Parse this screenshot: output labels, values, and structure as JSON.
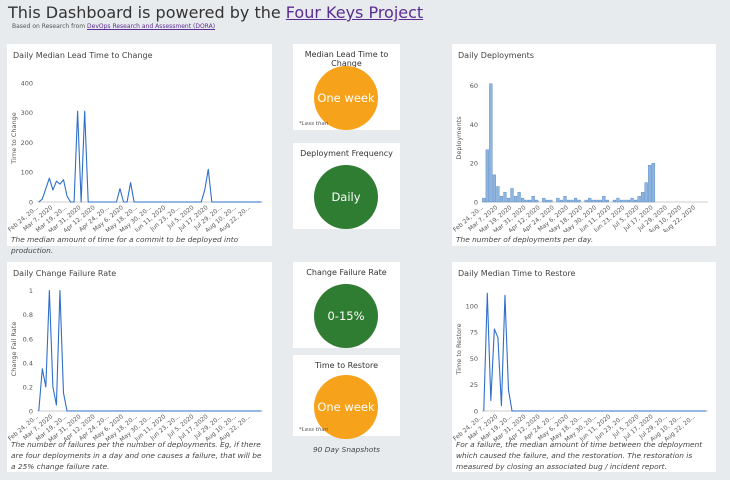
{
  "header": {
    "title": "This Dashboard is powered by the",
    "title_link": "Four Keys Project",
    "subtitle": "Based on Research from",
    "subtitle_link": "DevOps Research and Assessment (DORA)"
  },
  "chart_data": [
    {
      "type": "line",
      "title": "Daily Median Lead Time to Change",
      "y_label": "Time to Change",
      "caption": "The median amount of time for a commit to be deployed into production.",
      "color": "#2f6fc9",
      "categories": [
        "Feb 24, 20...",
        null,
        null,
        null,
        "Mar 7, 2020",
        null,
        null,
        null,
        "Mar 19, 20...",
        null,
        null,
        null,
        "Mar 31, 2020",
        null,
        null,
        null,
        "Apr 12, 2020",
        null,
        null,
        null,
        "Apr 24, 20...",
        null,
        null,
        null,
        "May 6, 2020",
        null,
        null,
        null,
        "May 18, 20...",
        null,
        null,
        null,
        "May 30, 20...",
        null,
        null,
        null,
        "Jun 11, 2020",
        null,
        null,
        null,
        "Jun 23, 20...",
        null,
        null,
        null,
        "Jul 5, 2020",
        null,
        null,
        null,
        "Jul 17, 2020",
        null,
        null,
        null,
        "Jul 29, 20...",
        null,
        null,
        null,
        "Aug 10, 20...",
        null,
        null,
        null,
        "Aug 22, 20...",
        null,
        null,
        null
      ],
      "values": [
        0,
        10,
        45,
        80,
        40,
        70,
        60,
        75,
        20,
        0,
        0,
        305,
        0,
        305,
        0,
        0,
        0,
        0,
        0,
        0,
        0,
        0,
        0,
        45,
        0,
        0,
        65,
        0,
        0,
        0,
        0,
        0,
        0,
        0,
        0,
        0,
        0,
        0,
        0,
        0,
        0,
        0,
        0,
        0,
        0,
        0,
        0,
        40,
        110,
        0,
        0,
        0,
        0,
        0,
        0,
        0,
        0,
        0,
        0,
        0,
        0,
        0,
        0,
        0
      ],
      "ylim": [
        0,
        430
      ],
      "yticks": [
        0,
        100,
        200,
        300,
        400
      ],
      "grid": false
    },
    {
      "type": "bar",
      "title": "Daily Deployments",
      "y_label": "Deployments",
      "caption": "The number of deployments per day.",
      "color": "#8fb4dd",
      "categories": [
        "Feb 24, 20...",
        null,
        null,
        null,
        "Mar 7, 2020",
        null,
        null,
        null,
        "Mar 19, 2020",
        null,
        null,
        null,
        "Mar 31, 2020",
        null,
        null,
        null,
        "Apr 12, 2020",
        null,
        null,
        null,
        "Apr 24, 2020",
        null,
        null,
        null,
        "May 6, 2020",
        null,
        null,
        null,
        "May 18, 2020",
        null,
        null,
        null,
        "May 30, 2020",
        null,
        null,
        null,
        "Jun 11, 2020",
        null,
        null,
        null,
        "Jun 23, 2020",
        null,
        null,
        null,
        "Jul 5, 2020",
        null,
        null,
        null,
        "Jul 17, 2020",
        null,
        null,
        null,
        "Jul 29, 2020",
        null,
        null,
        null,
        "Aug 10, 2020",
        null,
        null,
        null,
        "Aug 22, 2020",
        null,
        null,
        null
      ],
      "values": [
        2,
        27,
        61,
        14,
        8,
        3,
        5,
        2,
        7,
        3,
        5,
        2,
        1,
        1,
        3,
        1,
        0,
        2,
        1,
        1,
        0,
        2,
        1,
        3,
        1,
        1,
        2,
        1,
        0,
        1,
        2,
        1,
        1,
        1,
        3,
        1,
        0,
        1,
        2,
        1,
        1,
        1,
        2,
        1,
        3,
        5,
        10,
        19,
        20,
        0,
        0,
        0,
        0,
        0,
        0,
        0,
        0,
        0,
        0,
        0,
        0,
        0,
        0,
        0
      ],
      "ylim": [
        0,
        66
      ],
      "yticks": [
        0,
        20,
        40,
        60
      ],
      "grid": false
    },
    {
      "type": "line",
      "title": "Daily Change Failure Rate",
      "y_label": "Change Fail Rate",
      "caption": "The number of failures per the number of deployments. Eg, if there are four deployments in a day and one causes a failure, that will be a 25% change failure rate.",
      "color": "#2f6fc9",
      "categories": [
        "Feb 24, 20...",
        null,
        null,
        null,
        "Mar 7, 2020",
        null,
        null,
        null,
        "Mar 19, 20...",
        null,
        null,
        null,
        "Mar 31, 2020",
        null,
        null,
        null,
        "Apr 12, 2020",
        null,
        null,
        null,
        "Apr 24, 20...",
        null,
        null,
        null,
        "May 6, 2020",
        null,
        null,
        null,
        "May 18, 20...",
        null,
        null,
        null,
        "May 30, 20...",
        null,
        null,
        null,
        "Jun 11, 2020",
        null,
        null,
        null,
        "Jun 23, 20...",
        null,
        null,
        null,
        "Jul 5, 2020",
        null,
        null,
        null,
        "Jul 17, 2020",
        null,
        null,
        null,
        "Jul 29, 20...",
        null,
        null,
        null,
        "Aug 10, 20...",
        null,
        null,
        null,
        "Aug 22, 20...",
        null,
        null,
        null
      ],
      "values": [
        0,
        0.35,
        0.2,
        1,
        0.2,
        0.05,
        1,
        0.15,
        0,
        0,
        0,
        0,
        0,
        0,
        0,
        0,
        0,
        0,
        0,
        0,
        0,
        0,
        0,
        0,
        0,
        0,
        0,
        0,
        0,
        0,
        0,
        0,
        0,
        0,
        0,
        0,
        0,
        0,
        0,
        0,
        0,
        0,
        0,
        0,
        0,
        0,
        0,
        0,
        0,
        0,
        0,
        0,
        0,
        0,
        0,
        0,
        0,
        0,
        0,
        0,
        0,
        0,
        0,
        0
      ],
      "ylim": [
        0,
        1.03
      ],
      "yticks": [
        0,
        0.2,
        0.4,
        0.6,
        0.8,
        1
      ],
      "grid": false
    },
    {
      "type": "line",
      "title": "Daily Median Time to Restore",
      "y_label": "Time to Restore",
      "caption": "For a failure, the median amount of time between the deployment which caused the failure, and the restoration. The restoration is measured by closing an associated bug / incident report.",
      "color": "#2f6fc9",
      "categories": [
        "Feb 24, 20...",
        null,
        null,
        null,
        "Mar 7, 2020",
        null,
        null,
        null,
        "Mar 19, 20...",
        null,
        null,
        null,
        "Mar 31, 2020",
        null,
        null,
        null,
        "Apr 12, 2020",
        null,
        null,
        null,
        "Apr 24, 20...",
        null,
        null,
        null,
        "May 6, 2020",
        null,
        null,
        null,
        "May 18, 20...",
        null,
        null,
        null,
        "May 30, 20...",
        null,
        null,
        null,
        "Jun 11, 2020",
        null,
        null,
        null,
        "Jun 23, 20...",
        null,
        null,
        null,
        "Jul 5, 2020",
        null,
        null,
        null,
        "Jul 17, 2020",
        null,
        null,
        null,
        "Jul 29, 20...",
        null,
        null,
        null,
        "Aug 10, 20...",
        null,
        null,
        null,
        "Aug 22, 20...",
        null,
        null,
        null
      ],
      "values": [
        0,
        112,
        10,
        78,
        70,
        5,
        110,
        20,
        0,
        0,
        0,
        0,
        0,
        0,
        0,
        0,
        0,
        0,
        0,
        0,
        0,
        0,
        0,
        0,
        0,
        0,
        0,
        0,
        0,
        0,
        0,
        0,
        0,
        0,
        0,
        0,
        0,
        0,
        0,
        0,
        0,
        0,
        0,
        0,
        0,
        0,
        0,
        0,
        0,
        0,
        0,
        0,
        0,
        0,
        0,
        0,
        0,
        0,
        0,
        0,
        0,
        0,
        0,
        0
      ],
      "ylim": [
        0,
        118
      ],
      "yticks": [
        0,
        25,
        50,
        75,
        100
      ],
      "grid": false
    }
  ],
  "tiles": [
    {
      "title": "Median Lead Time to Change",
      "value": "One week",
      "note": "*Less than",
      "color": "#f7a21b"
    },
    {
      "title": "Deployment Frequency",
      "value": "Daily",
      "color": "#2e7d32"
    },
    {
      "title": "Change Failure Rate",
      "value": "0-15%",
      "color": "#2e7d32"
    },
    {
      "title": "Time to Restore",
      "value": "One week",
      "note": "*Less than",
      "color": "#f7a21b"
    }
  ],
  "snapshot_label": "90 Day Snapshots"
}
